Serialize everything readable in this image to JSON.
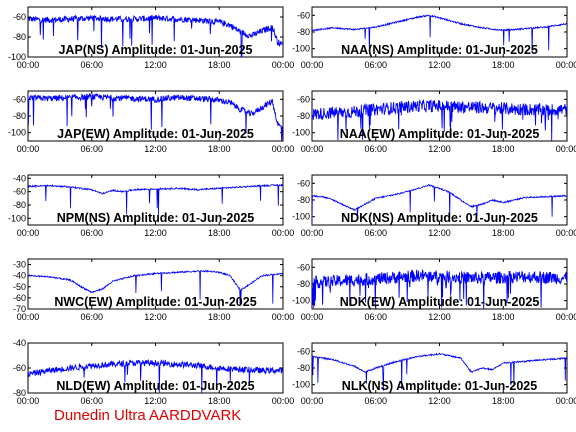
{
  "footer_text": "Dunedin Ultra AARDDVARK",
  "colors": {
    "trace": "#0000ff",
    "axis": "#000000",
    "footer": "#e00000",
    "background": "#ffffff"
  },
  "chart_data": [
    {
      "type": "line",
      "title": "JAP(NS) Amplitude: 01-Jun-2025",
      "x_tick_labels": [
        "00:00",
        "06:00",
        "12:00",
        "18:00",
        "00:00"
      ],
      "x_range_hours": [
        0,
        24
      ],
      "ylim": [
        -100,
        -50
      ],
      "y_ticks": [
        -100,
        -80,
        -60
      ],
      "series": [
        {
          "x": [
            0,
            2,
            4,
            6,
            8,
            10,
            12,
            14,
            16,
            18,
            19,
            20,
            21,
            22,
            23,
            23.5,
            24
          ],
          "values": [
            -62,
            -63,
            -62,
            -61,
            -62,
            -62,
            -61,
            -62,
            -63,
            -65,
            -68,
            -75,
            -79,
            -74,
            -70,
            -85,
            -88
          ]
        }
      ]
    },
    {
      "type": "line",
      "title": "NAA(NS) Amplitude: 01-Jun-2025",
      "x_tick_labels": [
        "00:00",
        "06:00",
        "12:00",
        "18:00",
        "00:00"
      ],
      "x_range_hours": [
        0,
        24
      ],
      "ylim": [
        -110,
        -50
      ],
      "y_ticks": [
        -100,
        -80,
        -60
      ],
      "series": [
        {
          "x": [
            0,
            2,
            4,
            6,
            8,
            10,
            11,
            12,
            14,
            16,
            18,
            20,
            22,
            24
          ],
          "values": [
            -78,
            -75,
            -77,
            -74,
            -68,
            -62,
            -60,
            -63,
            -70,
            -75,
            -78,
            -76,
            -74,
            -70
          ]
        }
      ]
    },
    {
      "type": "line",
      "title": "JAP(EW) Amplitude: 01-Jun-2025",
      "x_tick_labels": [
        "00:00",
        "06:00",
        "12:00",
        "18:00",
        "00:00"
      ],
      "x_range_hours": [
        0,
        24
      ],
      "ylim": [
        -110,
        -50
      ],
      "y_ticks": [
        -100,
        -80,
        -60
      ],
      "series": [
        {
          "x": [
            0,
            2,
            4,
            6,
            8,
            10,
            12,
            14,
            16,
            18,
            19,
            20,
            21,
            22,
            23,
            23.5,
            24
          ],
          "values": [
            -58,
            -59,
            -58,
            -57,
            -58,
            -59,
            -60,
            -58,
            -59,
            -61,
            -64,
            -72,
            -78,
            -70,
            -62,
            -90,
            -95
          ]
        }
      ]
    },
    {
      "type": "line",
      "title": "NAA(EW) Amplitude: 01-Jun-2025",
      "x_tick_labels": [
        "00:00",
        "06:00",
        "12:00",
        "18:00",
        "00:00"
      ],
      "x_range_hours": [
        0,
        24
      ],
      "ylim": [
        -110,
        -50
      ],
      "y_ticks": [
        -100,
        -80,
        -60
      ],
      "series": [
        {
          "x": [
            0,
            2,
            4,
            6,
            8,
            10,
            12,
            14,
            16,
            18,
            20,
            22,
            24
          ],
          "values": [
            -78,
            -76,
            -75,
            -72,
            -70,
            -68,
            -68,
            -69,
            -70,
            -71,
            -72,
            -73,
            -72
          ]
        }
      ]
    },
    {
      "type": "line",
      "title": "NPM(NS) Amplitude: 01-Jun-2025",
      "x_tick_labels": [
        "00:00",
        "06:00",
        "12:00",
        "18:00",
        "00:00"
      ],
      "x_range_hours": [
        0,
        24
      ],
      "ylim": [
        -110,
        -35
      ],
      "y_ticks": [
        -100,
        -80,
        -60,
        -40
      ],
      "series": [
        {
          "x": [
            0,
            2,
            4,
            6,
            7,
            8,
            9,
            10,
            12,
            14,
            16,
            18,
            20,
            22,
            24
          ],
          "values": [
            -52,
            -51,
            -53,
            -57,
            -63,
            -58,
            -60,
            -57,
            -56,
            -55,
            -57,
            -55,
            -53,
            -51,
            -50
          ]
        }
      ]
    },
    {
      "type": "line",
      "title": "NDK(NS) Amplitude: 01-Jun-2025",
      "x_tick_labels": [
        "00:00",
        "06:00",
        "12:00",
        "18:00",
        "00:00"
      ],
      "x_range_hours": [
        0,
        24
      ],
      "ylim": [
        -110,
        -50
      ],
      "y_ticks": [
        -100,
        -80,
        -60
      ],
      "series": [
        {
          "x": [
            0,
            1,
            2,
            3,
            4,
            5,
            6,
            8,
            10,
            11,
            12,
            13,
            14,
            15,
            16,
            17,
            18,
            20,
            22,
            24
          ],
          "values": [
            -75,
            -76,
            -80,
            -86,
            -92,
            -85,
            -78,
            -73,
            -66,
            -62,
            -66,
            -71,
            -80,
            -88,
            -85,
            -80,
            -83,
            -77,
            -76,
            -75
          ]
        }
      ]
    },
    {
      "type": "line",
      "title": "NWC(EW) Amplitude: 01-Jun-2025",
      "x_tick_labels": [
        "00:00",
        "06:00",
        "12:00",
        "18:00",
        "00:00"
      ],
      "x_range_hours": [
        0,
        24
      ],
      "ylim": [
        -70,
        -25
      ],
      "y_ticks": [
        -70,
        -60,
        -50,
        -40,
        -30
      ],
      "series": [
        {
          "x": [
            0,
            2,
            4,
            5,
            6,
            7,
            8,
            10,
            12,
            14,
            16,
            17,
            18,
            19,
            20,
            21,
            22,
            23,
            24
          ],
          "values": [
            -40,
            -41,
            -44,
            -50,
            -55,
            -52,
            -45,
            -40,
            -38,
            -37,
            -36,
            -36,
            -37,
            -40,
            -53,
            -47,
            -40,
            -39,
            -38
          ]
        }
      ]
    },
    {
      "type": "line",
      "title": "NDK(EW) Amplitude: 01-Jun-2025",
      "x_tick_labels": [
        "00:00",
        "06:00",
        "12:00",
        "18:00",
        "00:00"
      ],
      "x_range_hours": [
        0,
        24
      ],
      "ylim": [
        -110,
        -50
      ],
      "y_ticks": [
        -100,
        -80,
        -60
      ],
      "series": [
        {
          "x": [
            0,
            2,
            4,
            6,
            8,
            10,
            12,
            14,
            16,
            18,
            20,
            22,
            24
          ],
          "values": [
            -78,
            -77,
            -75,
            -74,
            -72,
            -70,
            -71,
            -72,
            -73,
            -72,
            -71,
            -72,
            -73
          ]
        }
      ]
    },
    {
      "type": "line",
      "title": "NLD(EW) Amplitude: 01-Jun-2025",
      "x_tick_labels": [
        "00:00",
        "06:00",
        "12:00",
        "18:00",
        "00:00"
      ],
      "x_range_hours": [
        0,
        24
      ],
      "ylim": [
        -80,
        -40
      ],
      "y_ticks": [
        -80,
        -60,
        -40
      ],
      "series": [
        {
          "x": [
            0,
            2,
            4,
            6,
            8,
            10,
            12,
            14,
            16,
            18,
            20,
            22,
            24
          ],
          "values": [
            -65,
            -62,
            -60,
            -58,
            -57,
            -56,
            -56,
            -57,
            -58,
            -60,
            -61,
            -62,
            -62
          ]
        }
      ]
    },
    {
      "type": "line",
      "title": "NLK(NS) Amplitude: 01-Jun-2025",
      "x_tick_labels": [
        "00:00",
        "06:00",
        "12:00",
        "18:00",
        "00:00"
      ],
      "x_range_hours": [
        0,
        24
      ],
      "ylim": [
        -110,
        -50
      ],
      "y_ticks": [
        -100,
        -80,
        -60
      ],
      "series": [
        {
          "x": [
            0,
            2,
            4,
            5,
            6,
            8,
            10,
            12,
            14,
            15,
            16,
            17,
            18,
            20,
            22,
            24
          ],
          "values": [
            -66,
            -70,
            -78,
            -85,
            -80,
            -72,
            -66,
            -63,
            -68,
            -85,
            -80,
            -82,
            -74,
            -72,
            -70,
            -68
          ]
        }
      ]
    }
  ]
}
